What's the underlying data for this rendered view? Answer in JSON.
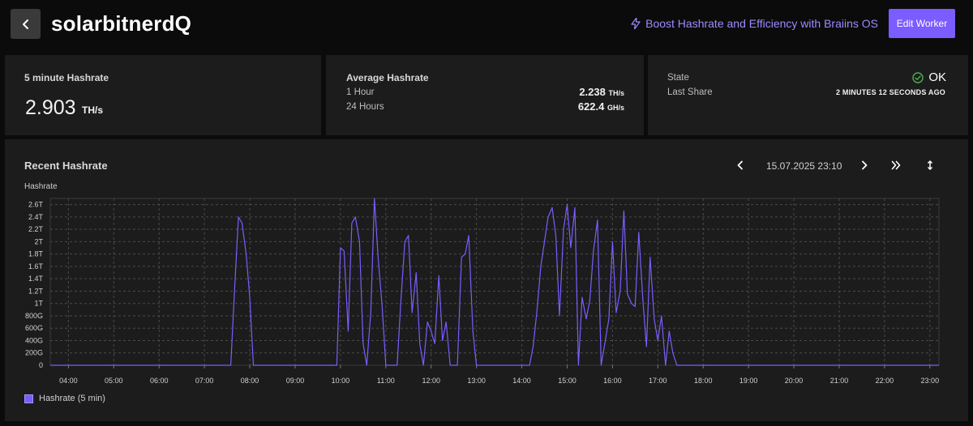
{
  "header": {
    "back_icon": "chevron-left-icon",
    "title": "solarbitnerdQ",
    "boost_icon": "lightning-icon",
    "boost_label": "Boost Hashrate and Efficiency with Braiins OS",
    "edit_label": "Edit Worker",
    "accent": "#7b5cff"
  },
  "five_min": {
    "label": "5 minute Hashrate",
    "value": "2.903",
    "unit": "TH/s"
  },
  "average": {
    "label": "Average Hashrate",
    "rows": [
      {
        "label": "1 Hour",
        "value": "2.238",
        "unit": "TH/s"
      },
      {
        "label": "24 Hours",
        "value": "622.4",
        "unit": "GH/s"
      }
    ]
  },
  "status": {
    "state_label": "State",
    "state_value": "OK",
    "state_color": "#4caf50",
    "last_share_label": "Last Share",
    "last_share_value": "2 MINUTES 12 SECONDS AGO"
  },
  "chart_controls": {
    "title": "Recent Hashrate",
    "date": "15.07.2025 23:10",
    "prev_icon": "chevron-left-icon",
    "next_icon": "chevron-right-icon",
    "latest_icon": "double-chevron-right-icon",
    "expand_icon": "vertical-arrows-icon"
  },
  "chart_data": {
    "type": "line",
    "ylabel": "Hashrate",
    "y_ticks": [
      "0",
      "200G",
      "400G",
      "600G",
      "800G",
      "1T",
      "1.2T",
      "1.4T",
      "1.6T",
      "1.8T",
      "2T",
      "2.2T",
      "2.4T",
      "2.6T"
    ],
    "ylim": [
      0,
      2.7
    ],
    "x_ticks": [
      "04:00",
      "05:00",
      "06:00",
      "07:00",
      "08:00",
      "09:00",
      "10:00",
      "11:00",
      "12:00",
      "13:00",
      "14:00",
      "15:00",
      "16:00",
      "17:00",
      "18:00",
      "19:00",
      "20:00",
      "21:00",
      "22:00",
      "23:00"
    ],
    "xlim": [
      3.6,
      23.2
    ],
    "series": [
      {
        "name": "Hashrate (5 min)",
        "color": "#7b5cff",
        "points": [
          [
            3.6,
            0
          ],
          [
            7.58,
            0
          ],
          [
            7.67,
            1.3
          ],
          [
            7.75,
            2.4
          ],
          [
            7.83,
            2.3
          ],
          [
            7.92,
            1.8
          ],
          [
            8.0,
            1.1
          ],
          [
            8.08,
            0
          ],
          [
            9.92,
            0
          ],
          [
            10.0,
            1.9
          ],
          [
            10.08,
            1.85
          ],
          [
            10.17,
            0.55
          ],
          [
            10.25,
            2.3
          ],
          [
            10.33,
            2.4
          ],
          [
            10.42,
            2.0
          ],
          [
            10.5,
            0.35
          ],
          [
            10.58,
            0
          ],
          [
            10.67,
            0.85
          ],
          [
            10.75,
            2.7
          ],
          [
            10.83,
            1.75
          ],
          [
            10.92,
            0.95
          ],
          [
            11.0,
            0
          ],
          [
            11.25,
            0
          ],
          [
            11.33,
            1.0
          ],
          [
            11.42,
            2.0
          ],
          [
            11.5,
            2.1
          ],
          [
            11.58,
            0.85
          ],
          [
            11.67,
            1.5
          ],
          [
            11.75,
            0.35
          ],
          [
            11.83,
            0
          ],
          [
            11.92,
            0.7
          ],
          [
            12.0,
            0.55
          ],
          [
            12.08,
            0.35
          ],
          [
            12.17,
            1.45
          ],
          [
            12.25,
            0.4
          ],
          [
            12.33,
            0.7
          ],
          [
            12.42,
            0
          ],
          [
            12.58,
            0
          ],
          [
            12.67,
            1.75
          ],
          [
            12.75,
            1.8
          ],
          [
            12.83,
            2.1
          ],
          [
            12.92,
            0.55
          ],
          [
            13.0,
            0
          ],
          [
            14.17,
            0
          ],
          [
            14.25,
            0.3
          ],
          [
            14.33,
            0.85
          ],
          [
            14.42,
            1.6
          ],
          [
            14.5,
            2.0
          ],
          [
            14.58,
            2.4
          ],
          [
            14.67,
            2.55
          ],
          [
            14.75,
            2.1
          ],
          [
            14.83,
            0.8
          ],
          [
            14.92,
            2.2
          ],
          [
            15.0,
            2.6
          ],
          [
            15.08,
            1.9
          ],
          [
            15.17,
            2.55
          ],
          [
            15.25,
            0
          ],
          [
            15.33,
            1.1
          ],
          [
            15.42,
            0.75
          ],
          [
            15.5,
            1.05
          ],
          [
            15.58,
            1.85
          ],
          [
            15.67,
            2.35
          ],
          [
            15.75,
            0
          ],
          [
            15.83,
            0.35
          ],
          [
            15.92,
            0.75
          ],
          [
            16.0,
            2.0
          ],
          [
            16.08,
            0.85
          ],
          [
            16.17,
            1.2
          ],
          [
            16.25,
            2.5
          ],
          [
            16.33,
            1.15
          ],
          [
            16.42,
            1.0
          ],
          [
            16.5,
            0.95
          ],
          [
            16.58,
            2.15
          ],
          [
            16.67,
            1.05
          ],
          [
            16.75,
            0.3
          ],
          [
            16.83,
            1.75
          ],
          [
            16.92,
            0.75
          ],
          [
            17.0,
            0.4
          ],
          [
            17.08,
            0.8
          ],
          [
            17.17,
            0
          ],
          [
            17.25,
            0.55
          ],
          [
            17.33,
            0.2
          ],
          [
            17.42,
            0
          ],
          [
            23.2,
            0
          ]
        ]
      }
    ],
    "grid": true,
    "legend": "bottom-left"
  }
}
